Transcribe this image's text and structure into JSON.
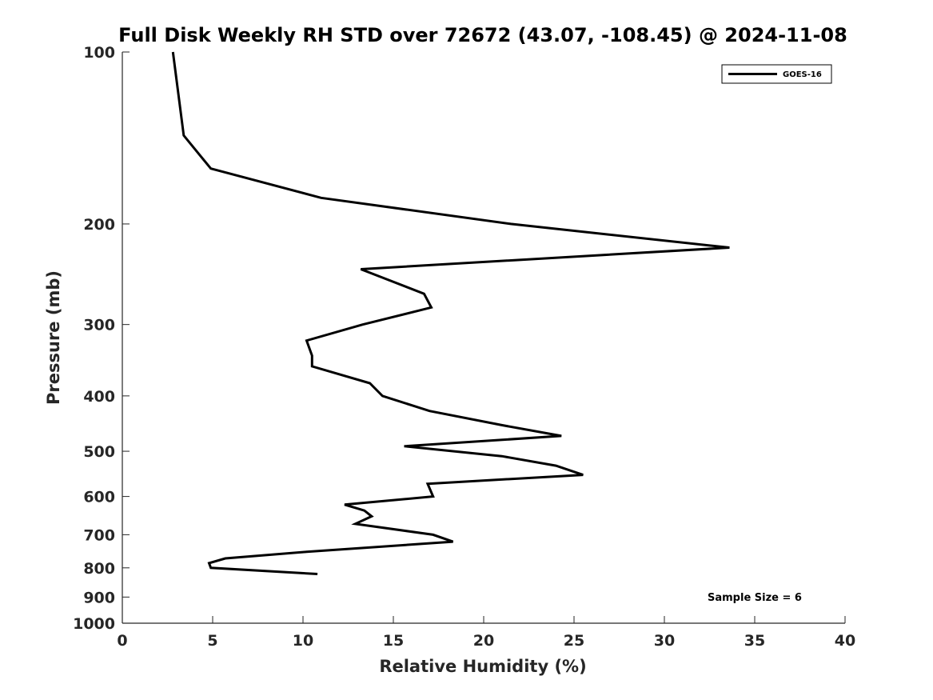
{
  "chart_data": {
    "type": "line",
    "title": "Full Disk Weekly RH STD over 72672 (43.07, -108.45) @ 2024-11-08",
    "xlabel": "Relative Humidity (%)",
    "ylabel": "Pressure (mb)",
    "xlim": [
      0,
      40
    ],
    "ylim": [
      100,
      1000
    ],
    "yscale": "log",
    "y_reversed": true,
    "xticks": [
      0,
      5,
      10,
      15,
      20,
      25,
      30,
      35,
      40
    ],
    "yticks": [
      100,
      200,
      300,
      400,
      500,
      600,
      700,
      800,
      900,
      1000
    ],
    "grid": false,
    "legend_position": "top-right",
    "annotation": "Sample Size = 6",
    "series": [
      {
        "name": "GOES-16",
        "color": "#000000",
        "points": [
          [
            2.8,
            100
          ],
          [
            3.4,
            140
          ],
          [
            4.9,
            160
          ],
          [
            11.0,
            180
          ],
          [
            21.5,
            200
          ],
          [
            33.6,
            220
          ],
          [
            13.2,
            240
          ],
          [
            16.7,
            265
          ],
          [
            17.1,
            280
          ],
          [
            13.3,
            300
          ],
          [
            10.2,
            320
          ],
          [
            10.5,
            340
          ],
          [
            10.5,
            355
          ],
          [
            13.7,
            380
          ],
          [
            14.4,
            400
          ],
          [
            17.0,
            425
          ],
          [
            21.0,
            450
          ],
          [
            24.3,
            470
          ],
          [
            15.6,
            490
          ],
          [
            21.0,
            510
          ],
          [
            24.0,
            530
          ],
          [
            25.5,
            550
          ],
          [
            16.9,
            570
          ],
          [
            17.2,
            600
          ],
          [
            12.3,
            620
          ],
          [
            13.4,
            635
          ],
          [
            13.8,
            650
          ],
          [
            12.9,
            670
          ],
          [
            17.2,
            700
          ],
          [
            18.3,
            720
          ],
          [
            10.2,
            750
          ],
          [
            5.7,
            770
          ],
          [
            4.8,
            785
          ],
          [
            4.9,
            800
          ],
          [
            10.8,
            820
          ]
        ]
      }
    ]
  }
}
